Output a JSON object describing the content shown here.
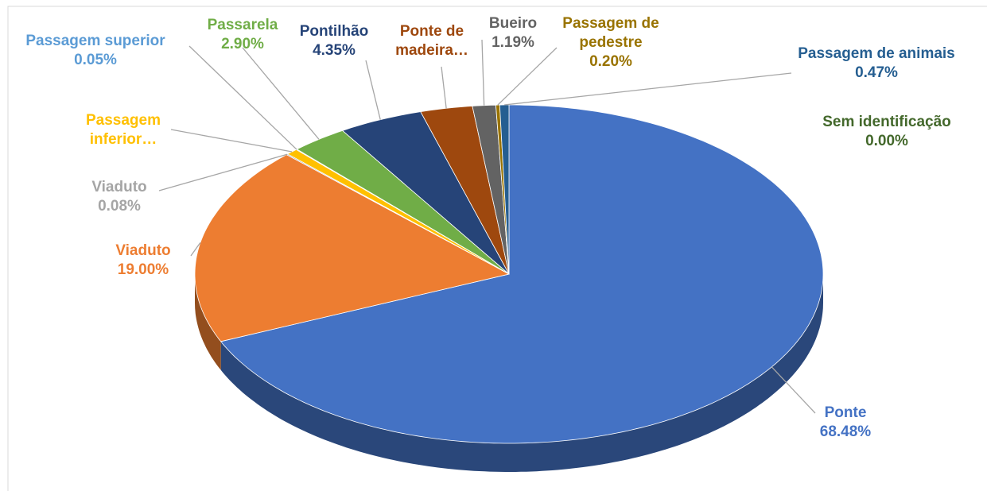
{
  "chart_data": {
    "type": "pie",
    "categories": [
      "Ponte",
      "Viaduto",
      "Viaduto",
      "Passagem inferior…",
      "Passagem superior",
      "Passarela",
      "Pontilhão",
      "Ponte de madeira…",
      "Bueiro",
      "Passagem de pedestre",
      "Passagem de animais",
      "Sem identificação"
    ],
    "values": [
      68.48,
      19.0,
      0.08,
      0.6,
      0.05,
      2.9,
      4.35,
      2.68,
      1.19,
      0.2,
      0.47,
      0.0
    ],
    "value_labels": [
      "68.48%",
      "19.00%",
      "0.08%",
      null,
      "0.05%",
      "2.90%",
      "4.35%",
      null,
      "1.19%",
      "0.20%",
      "0.47%",
      "0.00%"
    ],
    "colors": [
      "#4472c4",
      "#ed7d31",
      "#a5a5a5",
      "#ffc000",
      "#5b9bd5",
      "#70ad47",
      "#264478",
      "#9e480e",
      "#636363",
      "#997300",
      "#255e91",
      "#43682b"
    ]
  }
}
